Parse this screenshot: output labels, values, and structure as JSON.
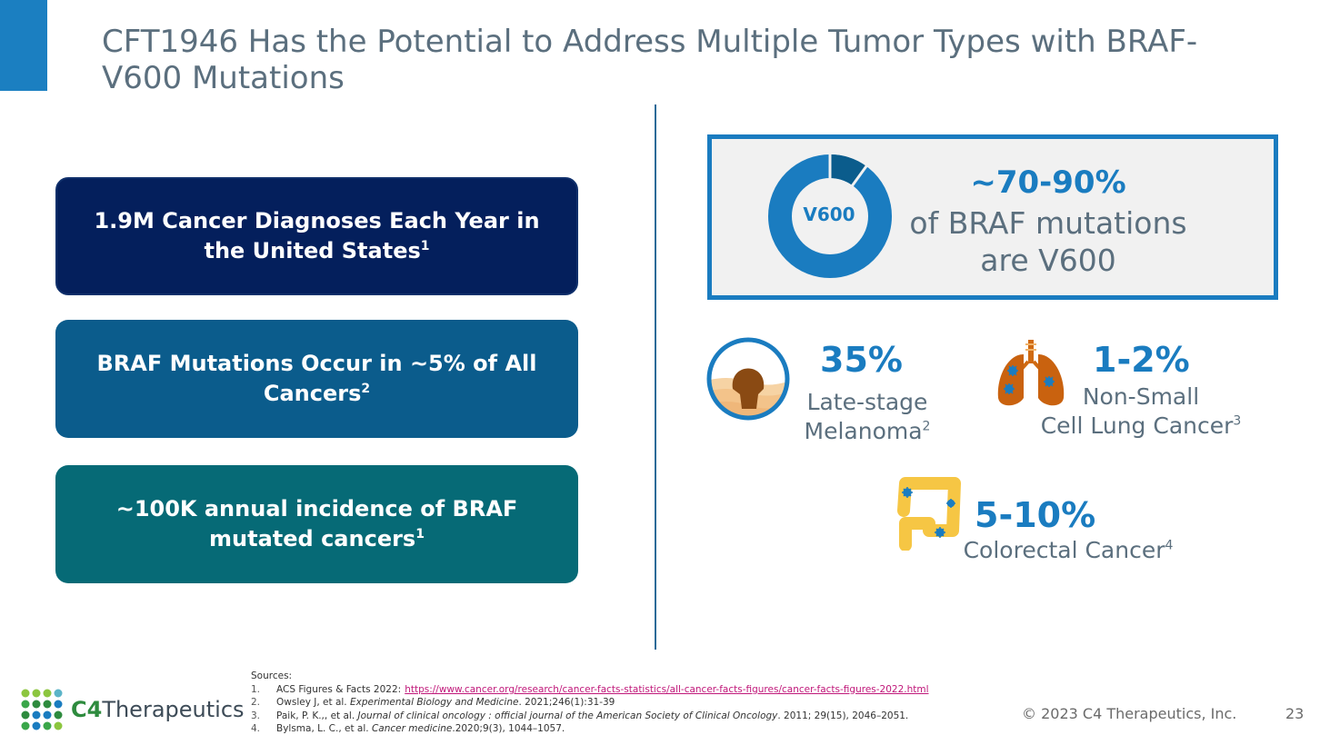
{
  "title": "CFT1946 Has the Potential to Address Multiple Tumor Types with BRAF-V600 Mutations",
  "boxes": [
    {
      "text": "1.9M Cancer Diagnoses Each Year in the United States",
      "ref": "1",
      "color": "#041f5c"
    },
    {
      "text": "BRAF Mutations Occur in ~5% of All Cancers",
      "ref": "2",
      "color": "#0b5c8c"
    },
    {
      "text": "~100K annual incidence of BRAF mutated cancers",
      "ref": "1",
      "color": "#066a76"
    }
  ],
  "v600": {
    "label": "V600",
    "percent": "~70-90%",
    "line1": "of BRAF mutations",
    "line2": "are V600",
    "share_shown": 0.9
  },
  "melanoma": {
    "percent": "35%",
    "line1": "Late-stage",
    "line2": "Melanoma",
    "ref": "2",
    "icon": "skin-lesion-icon"
  },
  "nsclc": {
    "percent": "1-2%",
    "line1": "Non-Small",
    "line2": "Cell Lung Cancer",
    "ref": "3",
    "icon": "lungs-icon"
  },
  "colorectal": {
    "percent": "5-10%",
    "line1": "Colorectal Cancer",
    "ref": "4",
    "icon": "colon-icon"
  },
  "sources": {
    "heading": "Sources:",
    "items": [
      {
        "num": "1.",
        "pre": "ACS Figures & Facts 2022:",
        "url": "https://www.cancer.org/research/cancer-facts-statistics/all-cancer-facts-figures/cancer-facts-figures-2022.html",
        "italic": "",
        "post": ""
      },
      {
        "num": "2.",
        "pre": "Owsley J, et al.",
        "url": "",
        "italic": "Experimental Biology and Medicine",
        "post": ". 2021;246(1):31-39"
      },
      {
        "num": "3.",
        "pre": "Paik, P. K.,, et al.",
        "url": "",
        "italic": "Journal of clinical oncology : official journal of the American Society of Clinical Oncology",
        "post": ". 2011; 29(15), 2046–2051."
      },
      {
        "num": "4.",
        "pre": "Bylsma, L. C., et al.",
        "url": "",
        "italic": "Cancer medicine",
        "post": ".2020;9(3), 1044–1057."
      }
    ]
  },
  "footer": {
    "logo_c4": "C4",
    "logo_name": "Therapeutics",
    "copyright": "© 2023 C4 Therapeutics, Inc.",
    "page": "23"
  },
  "colors": {
    "accent": "#1a7cc0",
    "text_gray": "#5b6f7e",
    "logo_green": "#2e8b3e"
  }
}
